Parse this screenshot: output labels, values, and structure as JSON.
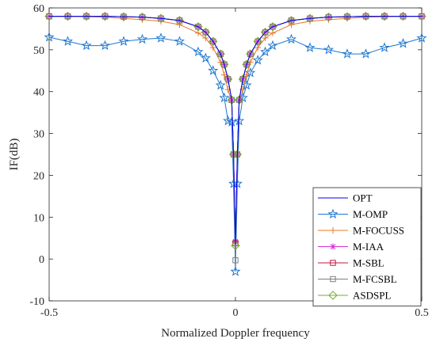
{
  "chart_data": {
    "type": "line",
    "xlabel": "Normalized Doppler frequency",
    "ylabel": "IF(dB)",
    "xlim": [
      -0.5,
      0.5
    ],
    "ylim": [
      -10,
      60
    ],
    "xticks": [
      -0.5,
      0,
      0.5
    ],
    "xtick_labels": [
      "-0.5",
      "0",
      "0.5"
    ],
    "yticks": [
      -10,
      0,
      10,
      20,
      30,
      40,
      50,
      60
    ],
    "ytick_labels": [
      "-10",
      "0",
      "10",
      "20",
      "30",
      "40",
      "50",
      "60"
    ],
    "legend_position": "bottom-right",
    "grid": false,
    "x": [
      -0.5,
      -0.45,
      -0.4,
      -0.35,
      -0.3,
      -0.25,
      -0.2,
      -0.15,
      -0.1,
      -0.08,
      -0.06,
      -0.04,
      -0.03,
      -0.02,
      -0.01,
      -0.005,
      0,
      0.005,
      0.01,
      0.02,
      0.03,
      0.04,
      0.06,
      0.08,
      0.1,
      0.15,
      0.2,
      0.25,
      0.3,
      0.35,
      0.4,
      0.45,
      0.5
    ],
    "series": [
      {
        "name": "OPT",
        "color": "#0000ff",
        "marker": "none",
        "values": [
          58,
          58,
          58,
          58,
          57.9,
          57.8,
          57.5,
          57,
          55.5,
          54.2,
          52,
          49,
          46.5,
          43,
          38,
          25,
          3.5,
          25,
          38,
          43,
          46.5,
          49,
          52,
          54.2,
          55.5,
          57,
          57.5,
          57.8,
          57.9,
          58,
          58,
          58,
          58
        ]
      },
      {
        "name": "M-OMP",
        "color": "#1f77d0",
        "marker": "star",
        "values": [
          53,
          52,
          51,
          51,
          52,
          52.5,
          52.8,
          52,
          49.5,
          48,
          45,
          41.5,
          38.5,
          33,
          32.7,
          18,
          -3,
          18,
          33,
          38.5,
          41.5,
          44.5,
          47.5,
          49.5,
          51,
          52.5,
          50.5,
          50,
          49,
          49,
          50.5,
          51.5,
          52.8
        ]
      },
      {
        "name": "M-FOCUSS",
        "color": "#e8742a",
        "marker": "plus",
        "values": [
          58,
          58,
          57.9,
          57.8,
          57.5,
          57.2,
          56.8,
          56,
          54,
          52.8,
          50.5,
          47,
          44,
          40.5,
          37.5,
          25,
          4,
          25,
          37.5,
          40.5,
          44,
          47,
          50.5,
          52.8,
          54,
          56,
          56.8,
          57.2,
          57.5,
          57.8,
          57.9,
          58,
          58
        ]
      },
      {
        "name": "M-IAA",
        "color": "#d62fd6",
        "marker": "asterisk",
        "values": [
          58,
          58,
          58,
          58,
          57.9,
          57.8,
          57.5,
          57,
          55.5,
          54.2,
          52,
          49,
          46.5,
          43,
          38,
          25,
          4.2,
          25,
          38,
          43,
          46.5,
          49,
          52,
          54.2,
          55.5,
          57,
          57.5,
          57.8,
          57.9,
          58,
          58,
          58,
          58
        ]
      },
      {
        "name": "M-SBL",
        "color": "#c0173e",
        "marker": "square",
        "values": [
          58,
          58,
          58,
          58,
          57.9,
          57.8,
          57.5,
          57,
          55.5,
          54.2,
          52,
          49,
          46.5,
          43,
          38,
          25,
          3.8,
          25,
          38,
          43,
          46.5,
          49,
          52,
          54.2,
          55.5,
          57,
          57.5,
          57.8,
          57.9,
          58,
          58,
          58,
          58
        ]
      },
      {
        "name": "M-FCSBL",
        "color": "#7f7f7f",
        "marker": "square",
        "values": [
          58,
          58,
          58,
          58,
          57.9,
          57.8,
          57.5,
          57,
          55.5,
          54.2,
          52,
          49,
          46.5,
          43,
          38,
          25,
          -0.3,
          25,
          38,
          43,
          46.5,
          49,
          52,
          54.2,
          55.5,
          57,
          57.5,
          57.8,
          57.9,
          58,
          58,
          58,
          58
        ]
      },
      {
        "name": "ASDSPL",
        "color": "#77ac30",
        "marker": "diamond",
        "values": [
          58,
          58,
          58,
          58,
          57.9,
          57.8,
          57.5,
          57,
          55.5,
          54.2,
          52,
          49,
          46.5,
          43,
          38,
          25,
          3.2,
          25,
          38,
          43,
          46.5,
          49,
          52,
          54.2,
          55.5,
          57,
          57.5,
          57.8,
          57.9,
          58,
          58,
          58,
          58
        ]
      }
    ]
  }
}
